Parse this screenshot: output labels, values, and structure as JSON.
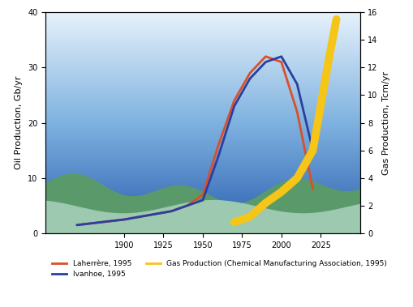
{
  "chart_data": {
    "type": "line",
    "y_label": "Oil Production, Gb/yr",
    "y2_label": "Gas Production, Tcm/yr",
    "x": [
      1870,
      1900,
      1930,
      1940,
      1950,
      1960,
      1970,
      1980,
      1990,
      2000,
      2010,
      2020,
      2030,
      2035
    ],
    "xlim": [
      1850,
      2050
    ],
    "xticks": [
      1900,
      1925,
      1950,
      1975,
      2000,
      2025
    ],
    "ylim": [
      0,
      40
    ],
    "yticks": [
      0,
      10,
      20,
      30,
      40
    ],
    "y2lim": [
      0,
      16
    ],
    "y2ticks": [
      0,
      2,
      4,
      6,
      8,
      10,
      12,
      14,
      16
    ],
    "legend": "bottom",
    "series": [
      {
        "name": "Laherrère, 1995",
        "color": "#d9502a",
        "values": [
          1.5,
          2.5,
          4,
          5,
          7,
          16,
          24,
          29,
          32,
          31,
          22,
          8,
          null,
          null
        ]
      },
      {
        "name": "Ivanhoe, 1995",
        "color": "#2b3f9e",
        "values": [
          1.5,
          2.5,
          4,
          5,
          6,
          14,
          23,
          28,
          31,
          32,
          27,
          15,
          null,
          null
        ]
      },
      {
        "name": "Gas Production (Chemical Manufacturing Association, 1995)",
        "color": "#f5c518",
        "axis": "y2",
        "values": [
          null,
          null,
          null,
          null,
          null,
          null,
          0.8,
          1.2,
          2.2,
          3.0,
          4.0,
          6.0,
          12.5,
          15.5
        ]
      }
    ]
  }
}
